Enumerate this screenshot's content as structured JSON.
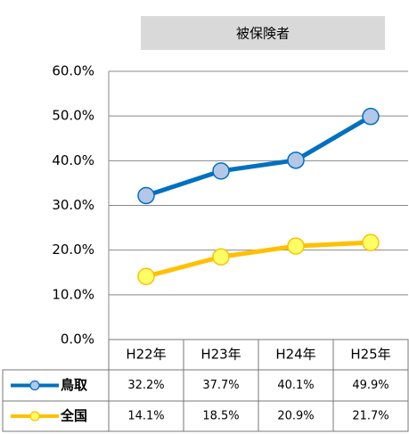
{
  "chart_data": {
    "type": "line",
    "title": "被保険者",
    "categories": [
      "H22年",
      "H23年",
      "H24年",
      "H25年"
    ],
    "series": [
      {
        "name": "鳥取",
        "color": "#0070c0",
        "marker_fill": "#b4c7e7",
        "values": [
          32.2,
          37.7,
          40.1,
          49.9
        ],
        "value_labels": [
          "32.2%",
          "37.7%",
          "40.1%",
          "49.9%"
        ]
      },
      {
        "name": "全国",
        "color": "#ffc000",
        "marker_fill": "#ffff66",
        "values": [
          14.1,
          18.5,
          20.9,
          21.7
        ],
        "value_labels": [
          "14.1%",
          "18.5%",
          "20.9%",
          "21.7%"
        ]
      }
    ],
    "ylim": [
      0,
      60
    ],
    "yticks": [
      {
        "value": 0,
        "label": "0.0%"
      },
      {
        "value": 10,
        "label": "10.0%"
      },
      {
        "value": 20,
        "label": "20.0%"
      },
      {
        "value": 30,
        "label": "30.0%"
      },
      {
        "value": 40,
        "label": "40.0%"
      },
      {
        "value": 50,
        "label": "50.0%"
      },
      {
        "value": 60,
        "label": "60.0%"
      }
    ],
    "grid": true
  }
}
